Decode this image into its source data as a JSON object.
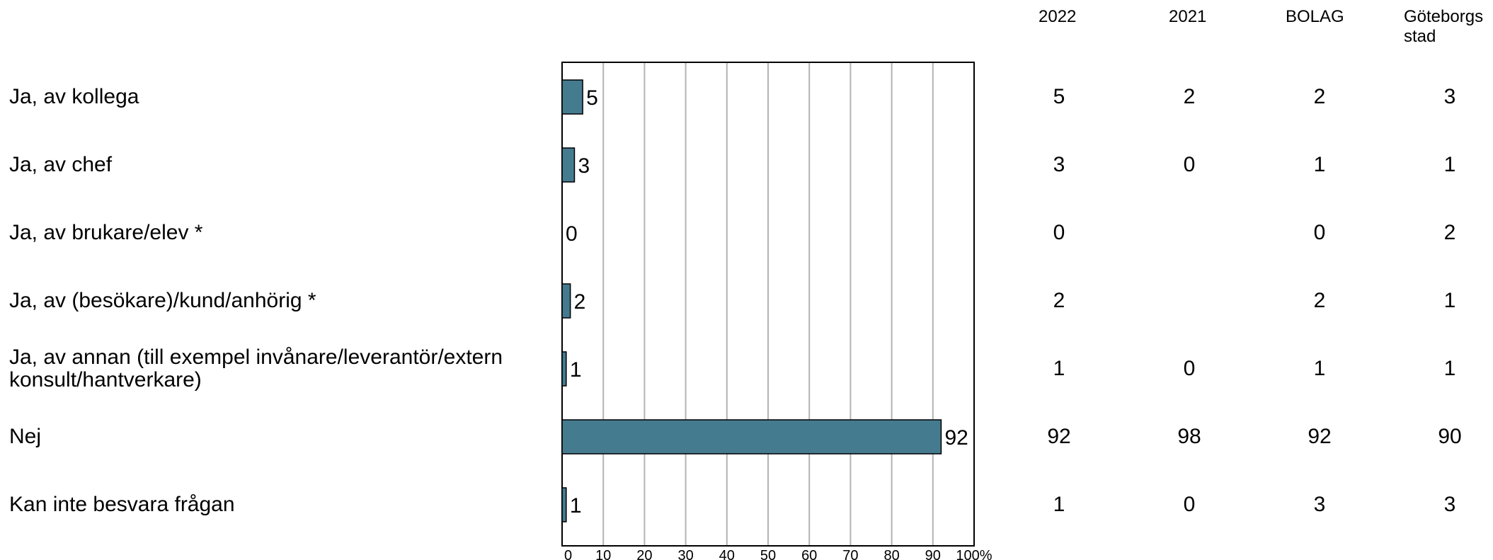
{
  "chart_data": {
    "type": "bar",
    "orientation": "horizontal",
    "categories": [
      "Ja, av kollega",
      "Ja, av chef",
      "Ja, av brukare/elev *",
      "Ja, av (besökare)/kund/anhörig *",
      "Ja, av annan (till exempel invånare/leverantör/extern konsult/hantverkare)",
      "Nej",
      "Kan inte besvara frågan"
    ],
    "values": [
      5,
      3,
      0,
      2,
      1,
      92,
      1
    ],
    "xlim": [
      0,
      100
    ],
    "xticks": [
      "0",
      "10",
      "20",
      "30",
      "40",
      "50",
      "60",
      "70",
      "80",
      "90",
      "100%"
    ],
    "grid": true,
    "bar_color": "#457b8f"
  },
  "table": {
    "headers": [
      "2022",
      "2021",
      "BOLAG",
      "Göteborgs stad"
    ],
    "rows": [
      [
        "5",
        "2",
        "2",
        "3"
      ],
      [
        "3",
        "0",
        "1",
        "1"
      ],
      [
        "0",
        "",
        "0",
        "2"
      ],
      [
        "2",
        "",
        "2",
        "1"
      ],
      [
        "1",
        "0",
        "1",
        "1"
      ],
      [
        "92",
        "98",
        "92",
        "90"
      ],
      [
        "1",
        "0",
        "3",
        "3"
      ]
    ]
  }
}
